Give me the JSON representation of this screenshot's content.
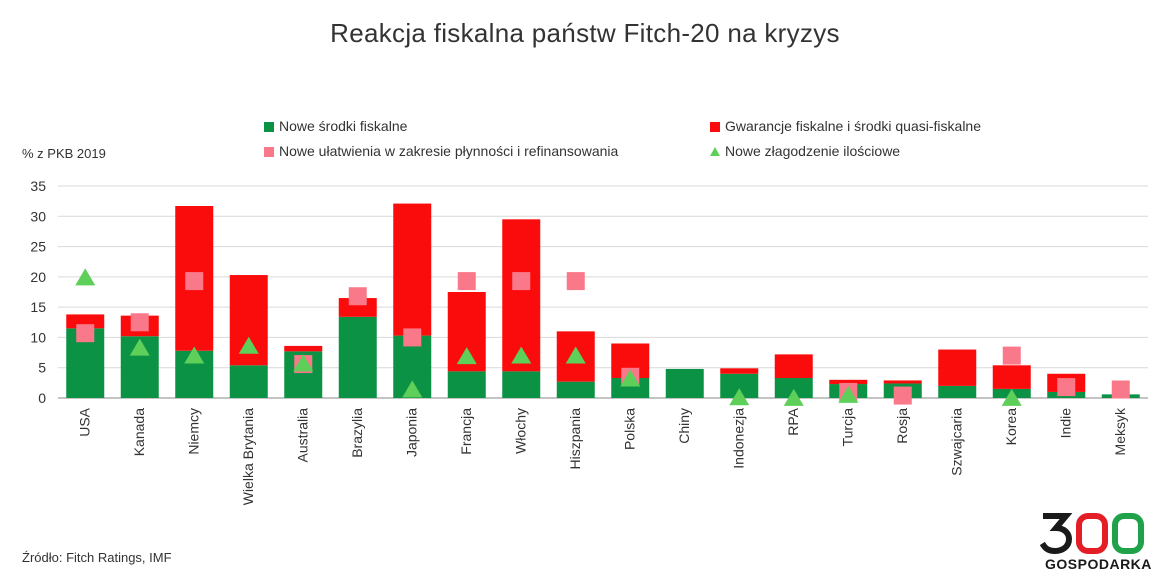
{
  "chart_data": {
    "type": "bar",
    "title": "Reakcja fiskalna państw Fitch-20 na kryzys",
    "ylabel": "% z PKB 2019",
    "ylim": [
      0,
      35
    ],
    "yticks": [
      0,
      5,
      10,
      15,
      20,
      25,
      30,
      35
    ],
    "grid": true,
    "categories": [
      "USA",
      "Kanada",
      "Niemcy",
      "Wielka Brytania",
      "Australia",
      "Brazylia",
      "Japonia",
      "Francja",
      "Włochy",
      "Hiszpania",
      "Polska",
      "Chiny",
      "Indonezja",
      "RPA",
      "Turcja",
      "Rosja",
      "Szwajcaria",
      "Korea",
      "Indie",
      "Meksyk"
    ],
    "series": [
      {
        "name": "Nowe środki fiskalne",
        "kind": "stacked-bar",
        "values": [
          11.5,
          10.2,
          7.8,
          5.4,
          7.7,
          13.4,
          10.3,
          4.4,
          4.4,
          2.7,
          3.3,
          4.8,
          4.0,
          3.3,
          2.3,
          2.4,
          2.0,
          1.5,
          1.0,
          0.6
        ]
      },
      {
        "name": "Gwarancje fiskalne i środki quasi-fiskalne",
        "kind": "stacked-bar",
        "values": [
          2.3,
          3.4,
          23.9,
          14.9,
          0.9,
          3.1,
          21.8,
          13.1,
          25.1,
          8.3,
          5.7,
          0.0,
          0.9,
          3.9,
          0.7,
          0.5,
          6.0,
          3.9,
          3.0,
          0.0
        ]
      },
      {
        "name": "Nowe ułatwienia w zakresie płynności i refinansowania",
        "kind": "marker-square",
        "values": [
          10.7,
          12.5,
          19.3,
          null,
          5.6,
          16.8,
          10.0,
          19.3,
          19.3,
          19.3,
          3.5,
          null,
          null,
          null,
          1.0,
          0.4,
          null,
          7.0,
          1.8,
          1.4
        ]
      },
      {
        "name": "Nowe złagodzenie ilościowe",
        "kind": "marker-triangle",
        "values": [
          20.0,
          8.4,
          7.1,
          8.7,
          5.8,
          null,
          1.5,
          7.0,
          7.1,
          7.1,
          3.3,
          null,
          0.2,
          0.1,
          0.6,
          null,
          null,
          0.1,
          null,
          null
        ]
      }
    ],
    "colors": {
      "fiscal": "#0c9245",
      "guarantees": "#fb0c0c",
      "liquidity": "#f9788a",
      "qe": "#5ecf59",
      "grid": "#d9d9d9"
    },
    "legend_placement": "top"
  },
  "source": "Źródło: Fitch Ratings, IMF",
  "logo": {
    "name": "300gospodarka-logo",
    "text": "300",
    "subtext": "GOSPODARKA"
  }
}
